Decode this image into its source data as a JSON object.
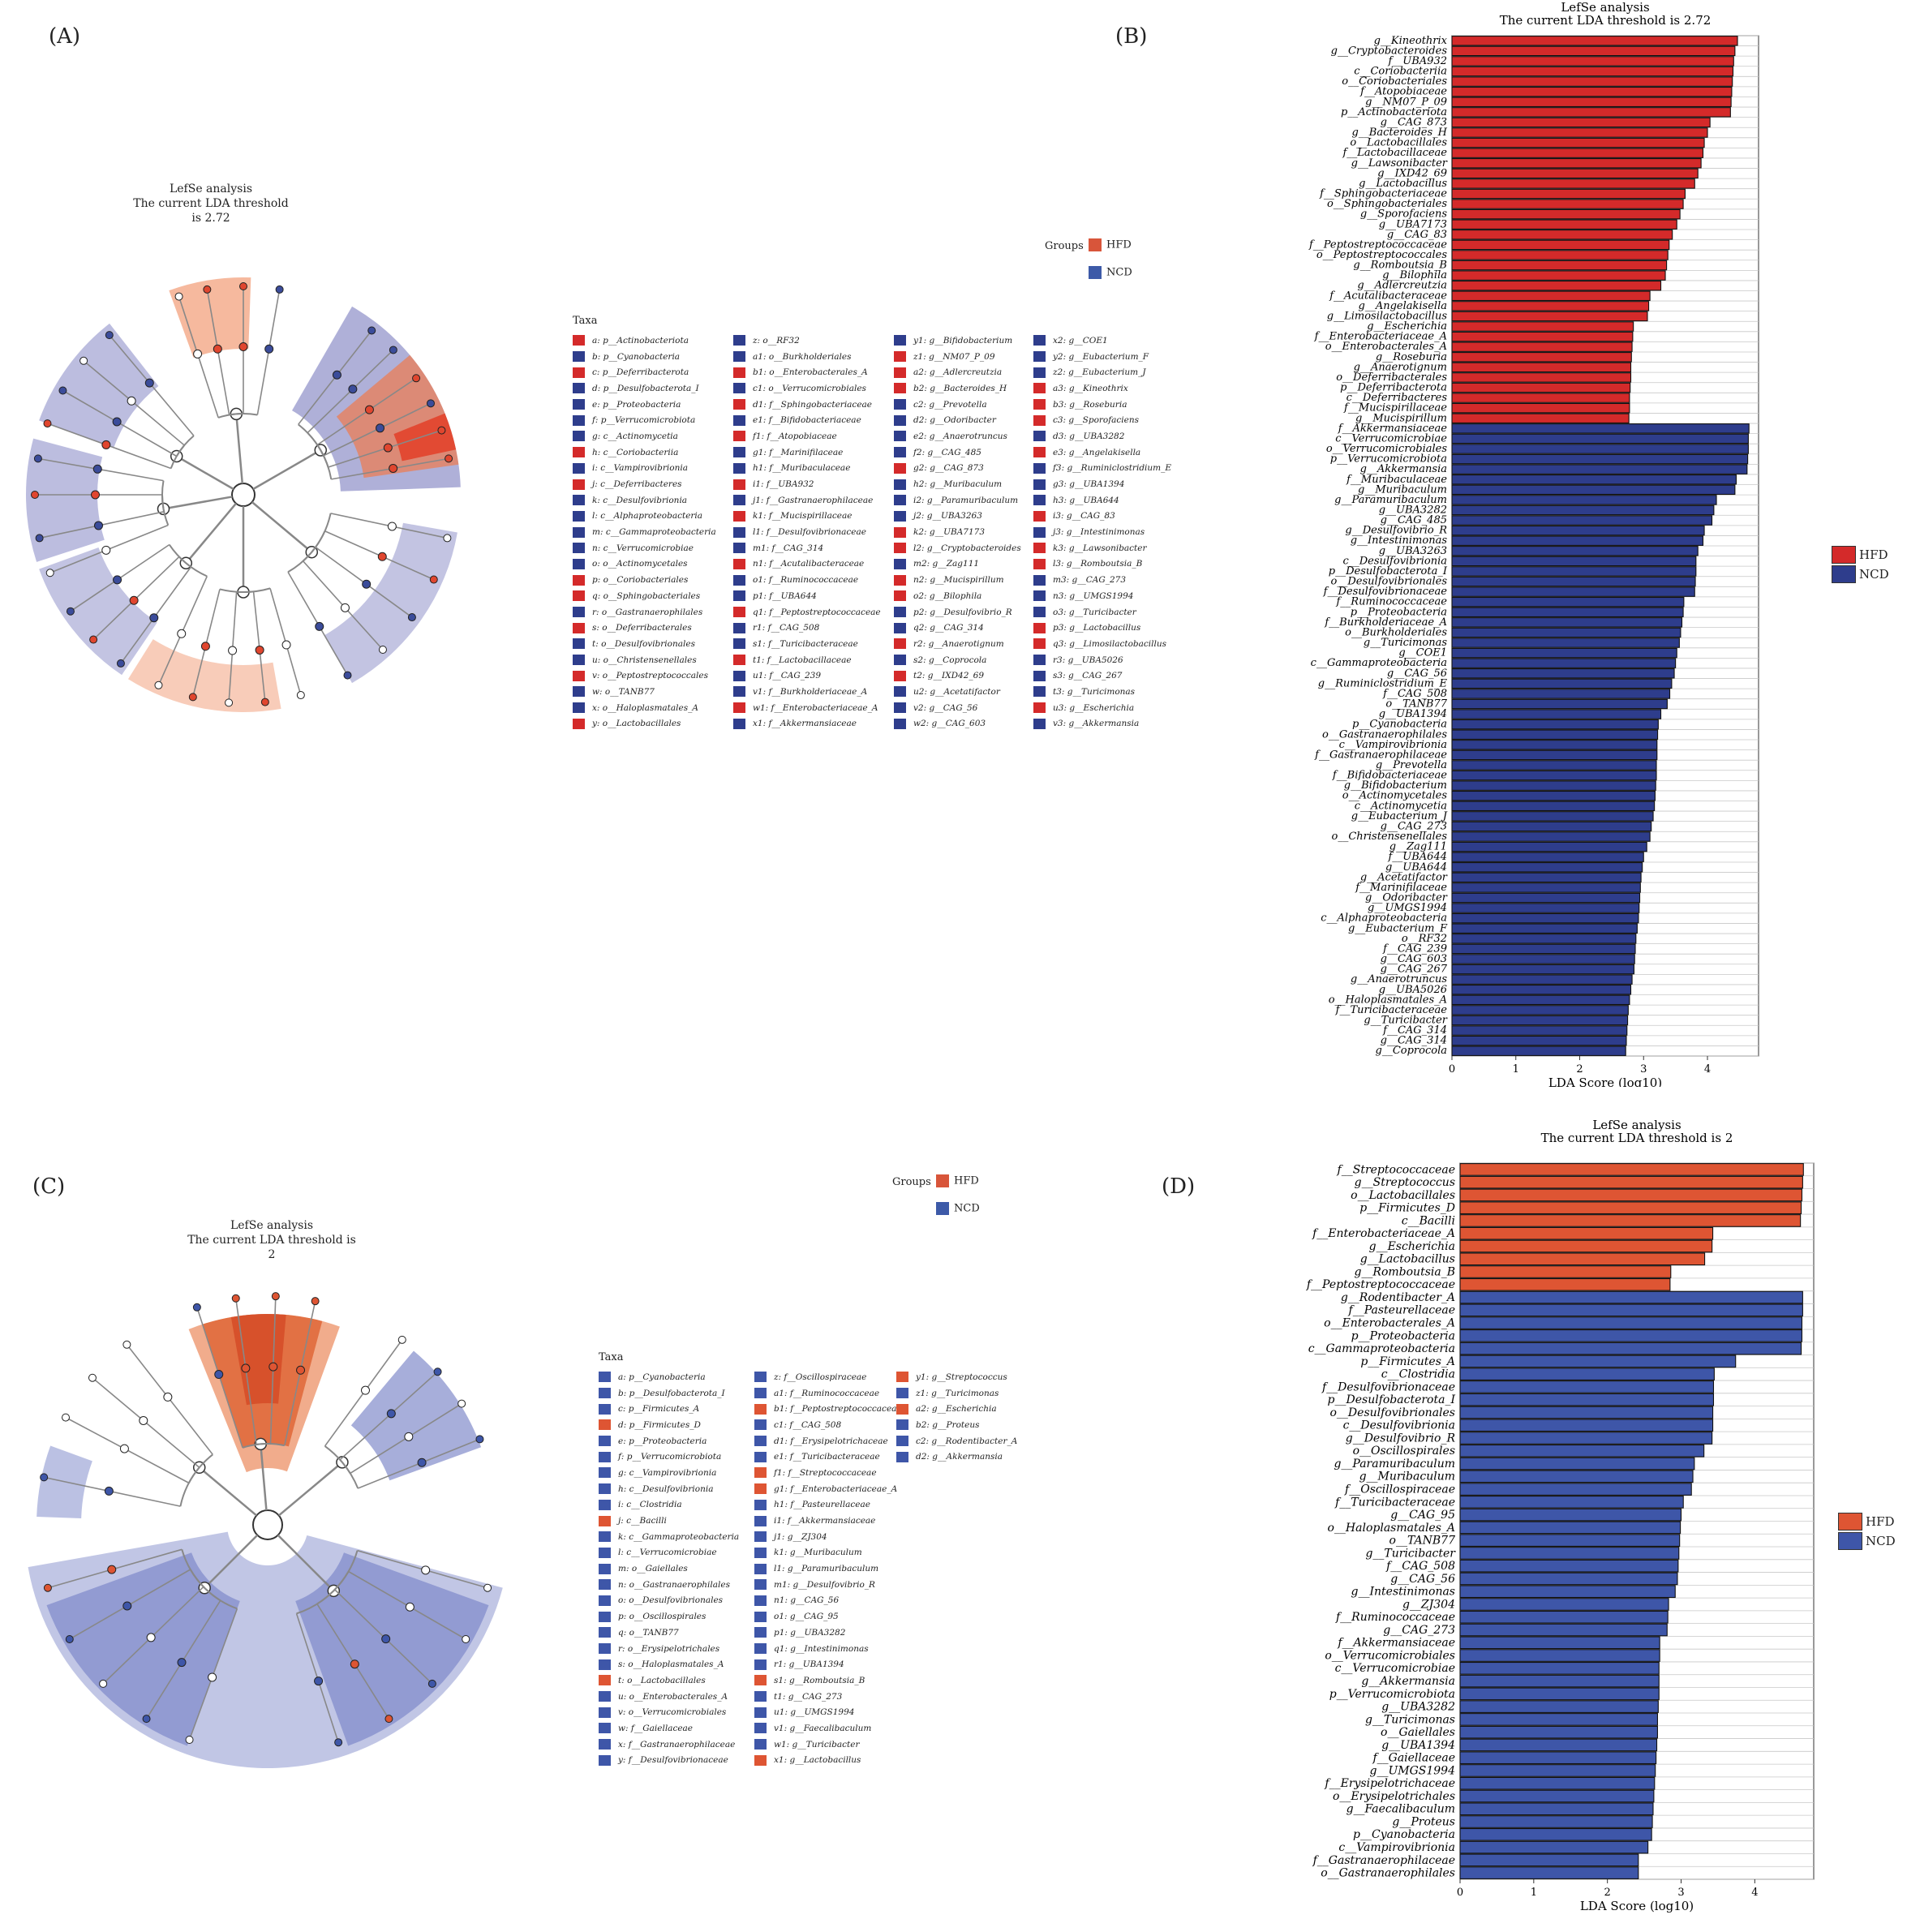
{
  "colors": {
    "hfd": "#d42a2a",
    "ncd": "#2e3d8c",
    "hfd_c": "#de5533",
    "ncd_c": "#3e56a8",
    "hfd_leg": "#d8553a",
    "ncd_leg": "#3d5aa8"
  },
  "panels": {
    "a": "(A)",
    "b": "(B)",
    "c": "(C)",
    "d": "(D)"
  },
  "groups": {
    "title": "Groups",
    "hfd": "HFD",
    "ncd": "NCD"
  },
  "taxa_header": "Taxa",
  "clado_a": {
    "title": "LefSe analysis",
    "subtitle": "The current LDA threshold is 2.72"
  },
  "clado_c": {
    "title": "LefSe analysis",
    "subtitle": "The current LDA threshold is 2"
  },
  "taxa_a": [
    [
      "a: p__Actinobacteriota",
      "H"
    ],
    [
      "b: p__Cyanobacteria",
      "N"
    ],
    [
      "c: p__Deferribacterota",
      "H"
    ],
    [
      "d: p__Desulfobacterota_I",
      "N"
    ],
    [
      "e: p__Proteobacteria",
      "N"
    ],
    [
      "f: p__Verrucomicrobiota",
      "N"
    ],
    [
      "g: c__Actinomycetia",
      "N"
    ],
    [
      "h: c__Coriobacteriia",
      "H"
    ],
    [
      "i: c__Vampirovibrionia",
      "N"
    ],
    [
      "j: c__Deferribacteres",
      "H"
    ],
    [
      "k: c__Desulfovibrionia",
      "N"
    ],
    [
      "l: c__Alphaproteobacteria",
      "N"
    ],
    [
      "m: c__Gammaproteobacteria",
      "N"
    ],
    [
      "n: c__Verrucomicrobiae",
      "N"
    ],
    [
      "o: o__Actinomycetales",
      "N"
    ],
    [
      "p: o__Coriobacteriales",
      "H"
    ],
    [
      "q: o__Sphingobacteriales",
      "H"
    ],
    [
      "r: o__Gastranaerophilales",
      "N"
    ],
    [
      "s: o__Deferribacterales",
      "H"
    ],
    [
      "t: o__Desulfovibrionales",
      "N"
    ],
    [
      "u: o__Christensenellales",
      "N"
    ],
    [
      "v: o__Peptostreptococcales",
      "H"
    ],
    [
      "w: o__TANB77",
      "N"
    ],
    [
      "x: o__Haloplasmatales_A",
      "N"
    ],
    [
      "y: o__Lactobacillales",
      "H"
    ],
    [
      "z: o__RF32",
      "N"
    ],
    [
      "a1: o__Burkholderiales",
      "N"
    ],
    [
      "b1: o__Enterobacterales_A",
      "H"
    ],
    [
      "c1: o__Verrucomicrobiales",
      "N"
    ],
    [
      "d1: f__Sphingobacteriaceae",
      "H"
    ],
    [
      "e1: f__Bifidobacteriaceae",
      "N"
    ],
    [
      "f1: f__Atopobiaceae",
      "H"
    ],
    [
      "g1: f__Marinifilaceae",
      "N"
    ],
    [
      "h1: f__Muribaculaceae",
      "N"
    ],
    [
      "i1: f__UBA932",
      "H"
    ],
    [
      "j1: f__Gastranaerophilaceae",
      "N"
    ],
    [
      "k1: f__Mucispirillaceae",
      "H"
    ],
    [
      "l1: f__Desulfovibrionaceae",
      "N"
    ],
    [
      "m1: f__CAG_314",
      "N"
    ],
    [
      "n1: f__Acutalibacteraceae",
      "H"
    ],
    [
      "o1: f__Ruminococcaceae",
      "N"
    ],
    [
      "p1: f__UBA644",
      "N"
    ],
    [
      "q1: f__Peptostreptococcaceae",
      "H"
    ],
    [
      "r1: f__CAG_508",
      "N"
    ],
    [
      "s1: f__Turicibacteraceae",
      "N"
    ],
    [
      "t1: f__Lactobacillaceae",
      "H"
    ],
    [
      "u1: f__CAG_239",
      "N"
    ],
    [
      "v1: f__Burkholderiaceae_A",
      "N"
    ],
    [
      "w1: f__Enterobacteriaceae_A",
      "H"
    ],
    [
      "x1: f__Akkermansiaceae",
      "N"
    ],
    [
      "y1: g__Bifidobacterium",
      "N"
    ],
    [
      "z1: g__NM07_P_09",
      "H"
    ],
    [
      "a2: g__Adlercreutzia",
      "H"
    ],
    [
      "b2: g__Bacteroides_H",
      "H"
    ],
    [
      "c2: g__Prevotella",
      "N"
    ],
    [
      "d2: g__Odoribacter",
      "N"
    ],
    [
      "e2: g__Anaerotruncus",
      "N"
    ],
    [
      "f2: g__CAG_485",
      "N"
    ],
    [
      "g2: g__CAG_873",
      "H"
    ],
    [
      "h2: g__Muribaculum",
      "N"
    ],
    [
      "i2: g__Paramuribaculum",
      "N"
    ],
    [
      "j2: g__UBA3263",
      "N"
    ],
    [
      "k2: g__UBA7173",
      "H"
    ],
    [
      "l2: g__Cryptobacteroides",
      "H"
    ],
    [
      "m2: g__Zag111",
      "N"
    ],
    [
      "n2: g__Mucispirillum",
      "H"
    ],
    [
      "o2: g__Bilophila",
      "H"
    ],
    [
      "p2: g__Desulfovibrio_R",
      "N"
    ],
    [
      "q2: g__CAG_314",
      "N"
    ],
    [
      "r2: g__Anaerotignum",
      "H"
    ],
    [
      "s2: g__Coprocola",
      "N"
    ],
    [
      "t2: g__IXD42_69",
      "H"
    ],
    [
      "u2: g__Acetatifactor",
      "N"
    ],
    [
      "v2: g__CAG_56",
      "N"
    ],
    [
      "w2: g__CAG_603",
      "N"
    ],
    [
      "x2: g__COE1",
      "N"
    ],
    [
      "y2: g__Eubacterium_F",
      "N"
    ],
    [
      "z2: g__Eubacterium_J",
      "N"
    ],
    [
      "a3: g__Kineothrix",
      "H"
    ],
    [
      "b3: g__Roseburia",
      "H"
    ],
    [
      "c3: g__Sporofaciens",
      "H"
    ],
    [
      "d3: g__UBA3282",
      "N"
    ],
    [
      "e3: g__Angelakisella",
      "H"
    ],
    [
      "f3: g__Ruminiclostridium_E",
      "N"
    ],
    [
      "g3: g__UBA1394",
      "N"
    ],
    [
      "h3: g__UBA644",
      "N"
    ],
    [
      "i3: g__CAG_83",
      "H"
    ],
    [
      "j3: g__Intestinimonas",
      "N"
    ],
    [
      "k3: g__Lawsonibacter",
      "H"
    ],
    [
      "l3: g__Romboutsia_B",
      "H"
    ],
    [
      "m3: g__CAG_273",
      "N"
    ],
    [
      "n3: g__UMGS1994",
      "N"
    ],
    [
      "o3: g__Turicibacter",
      "N"
    ],
    [
      "p3: g__Lactobacillus",
      "H"
    ],
    [
      "q3: g__Limosilactobacillus",
      "H"
    ],
    [
      "r3: g__UBA5026",
      "N"
    ],
    [
      "s3: g__CAG_267",
      "N"
    ],
    [
      "t3: g__Turicimonas",
      "N"
    ],
    [
      "u3: g__Escherichia",
      "H"
    ],
    [
      "v3: g__Akkermansia",
      "N"
    ]
  ],
  "taxa_c": [
    [
      "a: p__Cyanobacteria",
      "N"
    ],
    [
      "b: p__Desulfobacterota_I",
      "N"
    ],
    [
      "c: p__Firmicutes_A",
      "N"
    ],
    [
      "d: p__Firmicutes_D",
      "H"
    ],
    [
      "e: p__Proteobacteria",
      "N"
    ],
    [
      "f: p__Verrucomicrobiota",
      "N"
    ],
    [
      "g: c__Vampirovibrionia",
      "N"
    ],
    [
      "h: c__Desulfovibrionia",
      "N"
    ],
    [
      "i: c__Clostridia",
      "N"
    ],
    [
      "j: c__Bacilli",
      "H"
    ],
    [
      "k: c__Gammaproteobacteria",
      "N"
    ],
    [
      "l: c__Verrucomicrobiae",
      "N"
    ],
    [
      "m: o__Gaiellales",
      "N"
    ],
    [
      "n: o__Gastranaerophilales",
      "N"
    ],
    [
      "o: o__Desulfovibrionales",
      "N"
    ],
    [
      "p: o__Oscillospirales",
      "N"
    ],
    [
      "q: o__TANB77",
      "N"
    ],
    [
      "r: o__Erysipelotrichales",
      "N"
    ],
    [
      "s: o__Haloplasmatales_A",
      "N"
    ],
    [
      "t: o__Lactobacillales",
      "H"
    ],
    [
      "u: o__Enterobacterales_A",
      "N"
    ],
    [
      "v: o__Verrucomicrobiales",
      "N"
    ],
    [
      "w: f__Gaiellaceae",
      "N"
    ],
    [
      "x: f__Gastranaerophilaceae",
      "N"
    ],
    [
      "y: f__Desulfovibrionaceae",
      "N"
    ],
    [
      "z: f__Oscillospiraceae",
      "N"
    ],
    [
      "a1: f__Ruminococcaceae",
      "N"
    ],
    [
      "b1: f__Peptostreptococcaceae",
      "H"
    ],
    [
      "c1: f__CAG_508",
      "N"
    ],
    [
      "d1: f__Erysipelotrichaceae",
      "N"
    ],
    [
      "e1: f__Turicibacteraceae",
      "N"
    ],
    [
      "f1: f__Streptococcaceae",
      "H"
    ],
    [
      "g1: f__Enterobacteriaceae_A",
      "H"
    ],
    [
      "h1: f__Pasteurellaceae",
      "N"
    ],
    [
      "i1: f__Akkermansiaceae",
      "N"
    ],
    [
      "j1: g__ZJ304",
      "N"
    ],
    [
      "k1: g__Muribaculum",
      "N"
    ],
    [
      "l1: g__Paramuribaculum",
      "N"
    ],
    [
      "m1: g__Desulfovibrio_R",
      "N"
    ],
    [
      "n1: g__CAG_56",
      "N"
    ],
    [
      "o1: g__CAG_95",
      "N"
    ],
    [
      "p1: g__UBA3282",
      "N"
    ],
    [
      "q1: g__Intestinimonas",
      "N"
    ],
    [
      "r1: g__UBA1394",
      "N"
    ],
    [
      "s1: g__Romboutsia_B",
      "H"
    ],
    [
      "t1: g__CAG_273",
      "N"
    ],
    [
      "u1: g__UMGS1994",
      "N"
    ],
    [
      "v1: g__Faecalibaculum",
      "N"
    ],
    [
      "w1: g__Turicibacter",
      "N"
    ],
    [
      "x1: g__Lactobacillus",
      "H"
    ],
    [
      "y1: g__Streptococcus",
      "H"
    ],
    [
      "z1: g__Turicimonas",
      "N"
    ],
    [
      "a2: g__Escherichia",
      "H"
    ],
    [
      "b2: g__Proteus",
      "N"
    ],
    [
      "c2: g__Rodentibacter_A",
      "N"
    ],
    [
      "d2: g__Akkermansia",
      "N"
    ]
  ],
  "chart_data": [
    {
      "type": "bar",
      "orientation": "horizontal",
      "title": "LefSe analysis",
      "subtitle": "The current LDA threshold is 2.72",
      "xlabel": "LDA Score (log10)",
      "xlim": [
        0,
        4.8
      ],
      "xticks": [
        0,
        1,
        2,
        3,
        4
      ],
      "legend": [
        "HFD",
        "NCD"
      ],
      "legend_position": "right",
      "categories": [
        "g__Kineothrix",
        "g__Cryptobacteroides",
        "f__UBA932",
        "c__Coriobacteriia",
        "o__Coriobacteriales",
        "f__Atopobiaceae",
        "g__NM07_P_09",
        "p__Actinobacteriota",
        "g__CAG_873",
        "g__Bacteroides_H",
        "o__Lactobacillales",
        "f__Lactobacillaceae",
        "g__Lawsonibacter",
        "g__IXD42_69",
        "g__Lactobacillus",
        "f__Sphingobacteriaceae",
        "o__Sphingobacteriales",
        "g__Sporofaciens",
        "g__UBA7173",
        "g__CAG_83",
        "f__Peptostreptococcaceae",
        "o__Peptostreptococcales",
        "g__Romboutsia_B",
        "g__Bilophila",
        "g__Adlercreutzia",
        "f__Acutalibacteraceae",
        "g__Angelakisella",
        "g__Limosilactobacillus",
        "g__Escherichia",
        "f__Enterobacteriaceae_A",
        "o__Enterobacterales_A",
        "g__Roseburia",
        "g__Anaerotignum",
        "o__Deferribacterales",
        "p__Deferribacterota",
        "c__Deferribacteres",
        "f__Mucispirillaceae",
        "g__Mucispirillum",
        "f__Akkermansiaceae",
        "c__Verrucomicrobiae",
        "o__Verrucomicrobiales",
        "p__Verrucomicrobiota",
        "g__Akkermansia",
        "f__Muribaculaceae",
        "g__Muribaculum",
        "g__Paramuribaculum",
        "g__UBA3282",
        "g__CAG_485",
        "g__Desulfovibrio_R",
        "g__Intestinimonas",
        "g__UBA3263",
        "c__Desulfovibrionia",
        "p__Desulfobacterota_I",
        "o__Desulfovibrionales",
        "f__Desulfovibrionaceae",
        "f__Ruminococcaceae",
        "p__Proteobacteria",
        "f__Burkholderiaceae_A",
        "o__Burkholderiales",
        "g__Turicimonas",
        "g__COE1",
        "c__Gammaproteobacteria",
        "g__CAG_56",
        "g__Ruminiclostridium_E",
        "f__CAG_508",
        "o__TANB77",
        "g__UBA1394",
        "p__Cyanobacteria",
        "o__Gastranaerophilales",
        "c__Vampirovibrionia",
        "f__Gastranaerophilaceae",
        "g__Prevotella",
        "f__Bifidobacteriaceae",
        "g__Bifidobacterium",
        "o__Actinomycetales",
        "c__Actinomycetia",
        "g__Eubacterium_J",
        "g__CAG_273",
        "o__Christensenellales",
        "g__Zag111",
        "f__UBA644",
        "g__UBA644",
        "g__Acetatifactor",
        "f__Marinifilaceae",
        "g__Odoribacter",
        "g__UMGS1994",
        "c__Alphaproteobacteria",
        "g__Eubacterium_F",
        "o__RF32",
        "f__CAG_239",
        "g__CAG_603",
        "g__CAG_267",
        "g__Anaerotruncus",
        "g__UBA5026",
        "o__Haloplasmatales_A",
        "f__Turicibacteraceae",
        "g__Turicibacter",
        "f__CAG_314",
        "g__CAG_314",
        "g__Coprocola"
      ],
      "values": [
        4.47,
        4.43,
        4.41,
        4.4,
        4.39,
        4.38,
        4.37,
        4.36,
        4.04,
        4.0,
        3.95,
        3.93,
        3.9,
        3.85,
        3.8,
        3.65,
        3.62,
        3.57,
        3.52,
        3.45,
        3.4,
        3.38,
        3.36,
        3.34,
        3.27,
        3.1,
        3.08,
        3.06,
        2.84,
        2.83,
        2.82,
        2.81,
        2.8,
        2.8,
        2.79,
        2.78,
        2.78,
        2.77,
        4.65,
        4.64,
        4.64,
        4.63,
        4.62,
        4.45,
        4.43,
        4.14,
        4.1,
        4.07,
        3.95,
        3.93,
        3.85,
        3.82,
        3.82,
        3.81,
        3.8,
        3.63,
        3.62,
        3.6,
        3.58,
        3.56,
        3.52,
        3.5,
        3.48,
        3.44,
        3.41,
        3.37,
        3.27,
        3.23,
        3.22,
        3.21,
        3.21,
        3.2,
        3.2,
        3.19,
        3.18,
        3.17,
        3.15,
        3.12,
        3.1,
        3.05,
        3.0,
        2.98,
        2.96,
        2.95,
        2.94,
        2.93,
        2.92,
        2.9,
        2.88,
        2.87,
        2.86,
        2.85,
        2.82,
        2.8,
        2.78,
        2.76,
        2.75,
        2.74,
        2.73,
        2.72
      ],
      "groups": "38xHFD,62xNCD",
      "series": [
        {
          "name": "HFD",
          "count": 38
        },
        {
          "name": "NCD",
          "count": 62
        }
      ]
    },
    {
      "type": "bar",
      "orientation": "horizontal",
      "title": "LefSe analysis",
      "subtitle": "The current LDA threshold is 2",
      "xlabel": "LDA Score (log10)",
      "xlim": [
        0,
        4.8
      ],
      "xticks": [
        0,
        1,
        2,
        3,
        4
      ],
      "legend": [
        "HFD",
        "NCD"
      ],
      "legend_position": "right",
      "categories": [
        "f__Streptococcaceae",
        "g__Streptococcus",
        "o__Lactobacillales",
        "p__Firmicutes_D",
        "c__Bacilli",
        "f__Enterobacteriaceae_A",
        "g__Escherichia",
        "g__Lactobacillus",
        "g__Romboutsia_B",
        "f__Peptostreptococcaceae",
        "g__Rodentibacter_A",
        "f__Pasteurellaceae",
        "o__Enterobacterales_A",
        "p__Proteobacteria",
        "c__Gammaproteobacteria",
        "p__Firmicutes_A",
        "c__Clostridia",
        "f__Desulfovibrionaceae",
        "p__Desulfobacterota_I",
        "o__Desulfovibrionales",
        "c__Desulfovibrionia",
        "g__Desulfovibrio_R",
        "o__Oscillospirales",
        "g__Paramuribaculum",
        "g__Muribaculum",
        "f__Oscillospiraceae",
        "f__Turicibacteraceae",
        "g__CAG_95",
        "o__Haloplasmatales_A",
        "o__TANB77",
        "g__Turicibacter",
        "f__CAG_508",
        "g__CAG_56",
        "g__Intestinimonas",
        "g__ZJ304",
        "f__Ruminococcaceae",
        "g__CAG_273",
        "f__Akkermansiaceae",
        "o__Verrucomicrobiales",
        "c__Verrucomicrobiae",
        "g__Akkermansia",
        "p__Verrucomicrobiota",
        "g__UBA3282",
        "g__Turicimonas",
        "o__Gaiellales",
        "g__UBA1394",
        "f__Gaiellaceae",
        "g__UMGS1994",
        "f__Erysipelotrichaceae",
        "o__Erysipelotrichales",
        "g__Faecalibaculum",
        "g__Proteus",
        "p__Cyanobacteria",
        "c__Vampirovibrionia",
        "f__Gastranaerophilaceae",
        "o__Gastranaerophilales"
      ],
      "values": [
        4.66,
        4.65,
        4.64,
        4.63,
        4.62,
        3.43,
        3.42,
        3.32,
        2.86,
        2.85,
        4.65,
        4.65,
        4.64,
        4.64,
        4.63,
        3.74,
        3.45,
        3.44,
        3.44,
        3.43,
        3.43,
        3.42,
        3.31,
        3.18,
        3.16,
        3.14,
        3.03,
        3.0,
        2.99,
        2.98,
        2.97,
        2.96,
        2.95,
        2.92,
        2.83,
        2.82,
        2.81,
        2.71,
        2.71,
        2.7,
        2.7,
        2.7,
        2.69,
        2.68,
        2.68,
        2.67,
        2.66,
        2.65,
        2.64,
        2.63,
        2.62,
        2.61,
        2.6,
        2.55,
        2.42,
        2.42
      ],
      "groups": "10xHFD,46xNCD",
      "series": [
        {
          "name": "HFD",
          "count": 10
        },
        {
          "name": "NCD",
          "count": 46
        }
      ]
    }
  ]
}
